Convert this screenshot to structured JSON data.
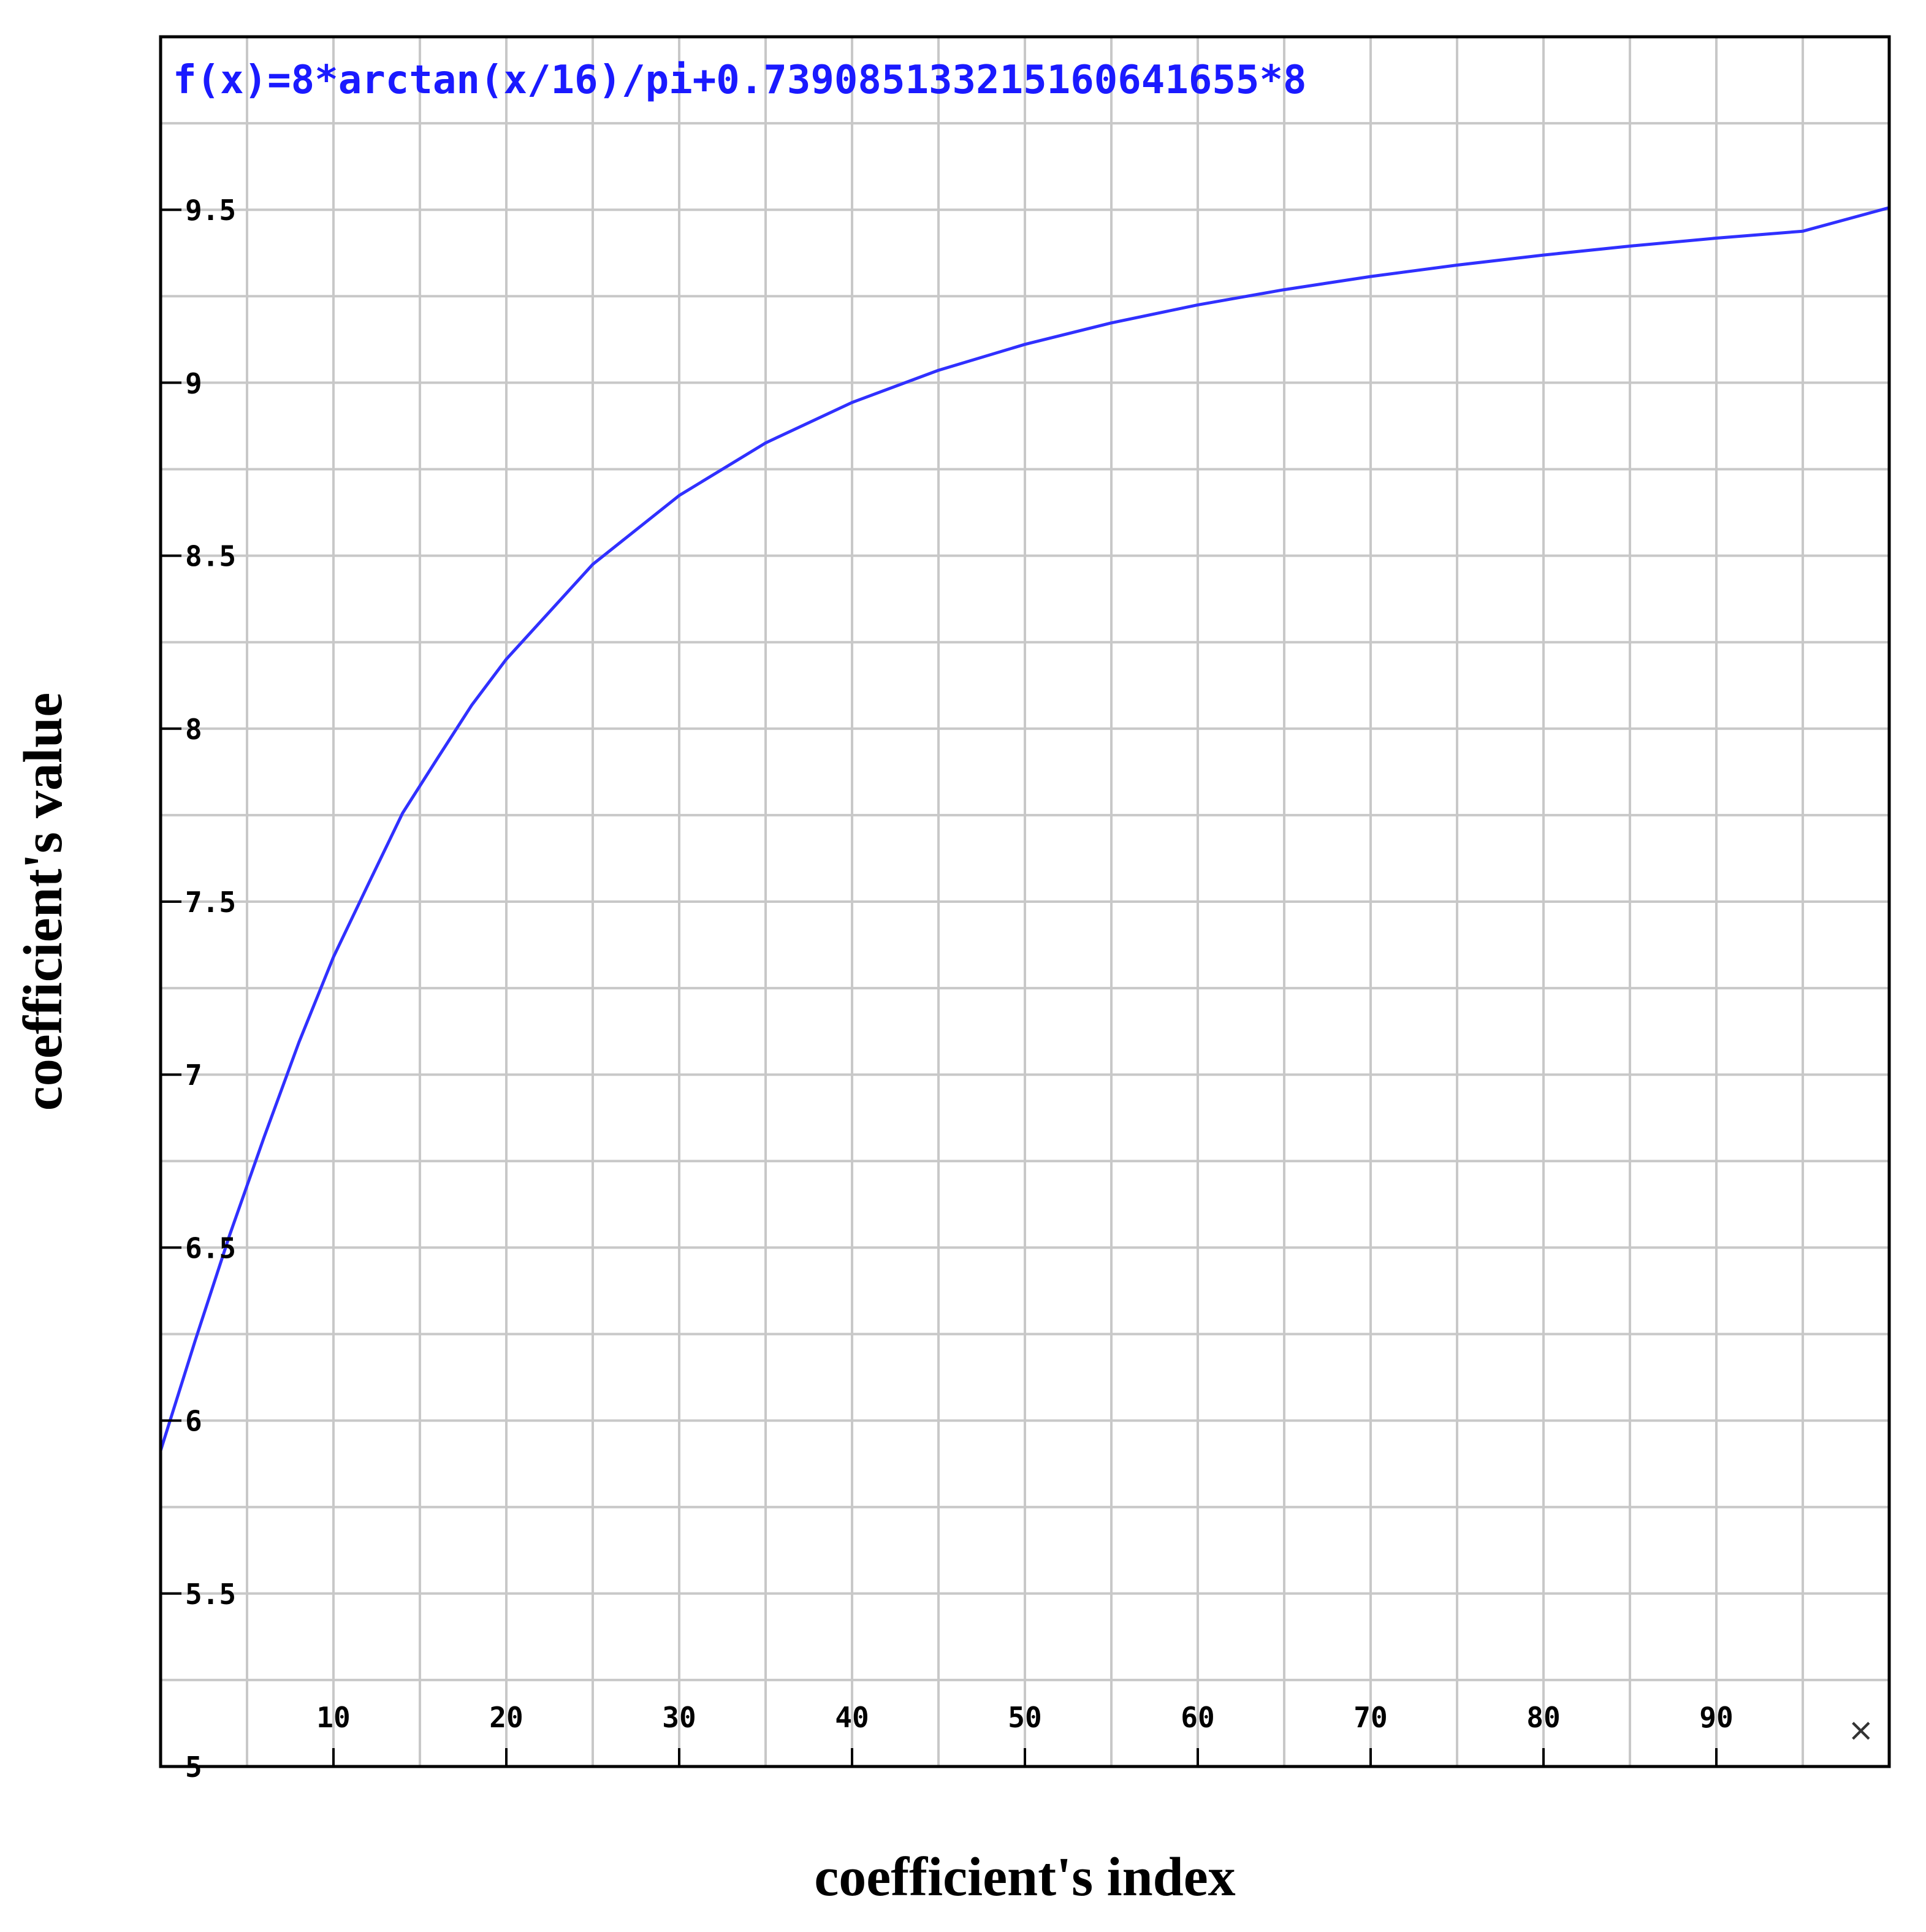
{
  "chart_data": {
    "type": "line",
    "title": "f(x)=8*arctan(x/16)/pi+0.739085133215160641655*8",
    "xlabel": "coefficient's index",
    "ylabel": "coefficient's value",
    "x_axis_marker": "×",
    "xlim": [
      0,
      100
    ],
    "ylim": [
      5,
      10
    ],
    "x_ticks": [
      10,
      20,
      30,
      40,
      50,
      60,
      70,
      80,
      90
    ],
    "x_tick_labels": [
      "10",
      "20",
      "30",
      "40",
      "50",
      "60",
      "70",
      "80",
      "90"
    ],
    "y_ticks": [
      5,
      5.5,
      6,
      6.5,
      7,
      7.5,
      8,
      8.5,
      9,
      9.5
    ],
    "y_tick_labels": [
      "5",
      "5.5",
      "6",
      "6.5",
      "7",
      "7.5",
      "8",
      "8.5",
      "9",
      "9.5"
    ],
    "grid": true,
    "colors": {
      "line": "#3030ff",
      "title": "#1a1aff",
      "grid": "#c8c8c8",
      "frame": "#000000"
    },
    "series": [
      {
        "x": [
          0,
          2,
          4,
          6,
          8,
          10,
          12,
          14,
          16,
          18,
          20,
          25,
          30,
          35,
          40,
          45,
          50,
          55,
          60,
          65,
          70,
          75,
          80,
          85,
          90,
          95,
          100
        ],
        "y": [
          5.913,
          6.231,
          6.537,
          6.821,
          7.093,
          7.34,
          7.549,
          7.756,
          7.913,
          8.068,
          8.201,
          8.475,
          8.674,
          8.826,
          8.943,
          9.036,
          9.111,
          9.173,
          9.225,
          9.269,
          9.307,
          9.34,
          9.369,
          9.395,
          9.418,
          9.438,
          9.506
        ]
      }
    ]
  }
}
